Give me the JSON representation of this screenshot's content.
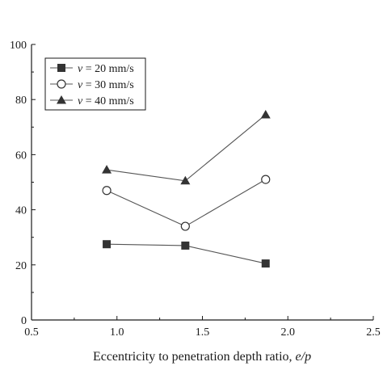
{
  "chart_data": {
    "type": "line",
    "xlabel": "Eccentricity to penetration depth ratio, ",
    "xlabel_var": "e/p",
    "ylabel": "",
    "xlim": [
      0.5,
      2.5
    ],
    "ylim": [
      0,
      100
    ],
    "x_ticks": [
      "0.5",
      "1.0",
      "1.5",
      "2.0",
      "2.5"
    ],
    "y_ticks": [
      "0",
      "20",
      "40",
      "60",
      "80",
      "100"
    ],
    "grid": false,
    "legend_position": "top-left",
    "series": [
      {
        "name": "v = 20 mm/s",
        "legend_var": "v",
        "legend_rest": " = 20 mm/s",
        "marker": "square-filled",
        "x": [
          0.94,
          1.4,
          1.87
        ],
        "y": [
          27.5,
          27.0,
          20.5
        ]
      },
      {
        "name": "v = 30 mm/s",
        "legend_var": "v",
        "legend_rest": " = 30 mm/s",
        "marker": "circle-open",
        "x": [
          0.94,
          1.4,
          1.87
        ],
        "y": [
          47.0,
          34.0,
          51.0
        ]
      },
      {
        "name": "v = 40 mm/s",
        "legend_var": "v",
        "legend_rest": " = 40 mm/s",
        "marker": "triangle-filled",
        "x": [
          0.94,
          1.4,
          1.87
        ],
        "y": [
          54.5,
          50.5,
          74.5
        ]
      }
    ],
    "colors": {
      "line": "#555555",
      "marker": "#333333",
      "axis": "#1a1a1a"
    }
  }
}
